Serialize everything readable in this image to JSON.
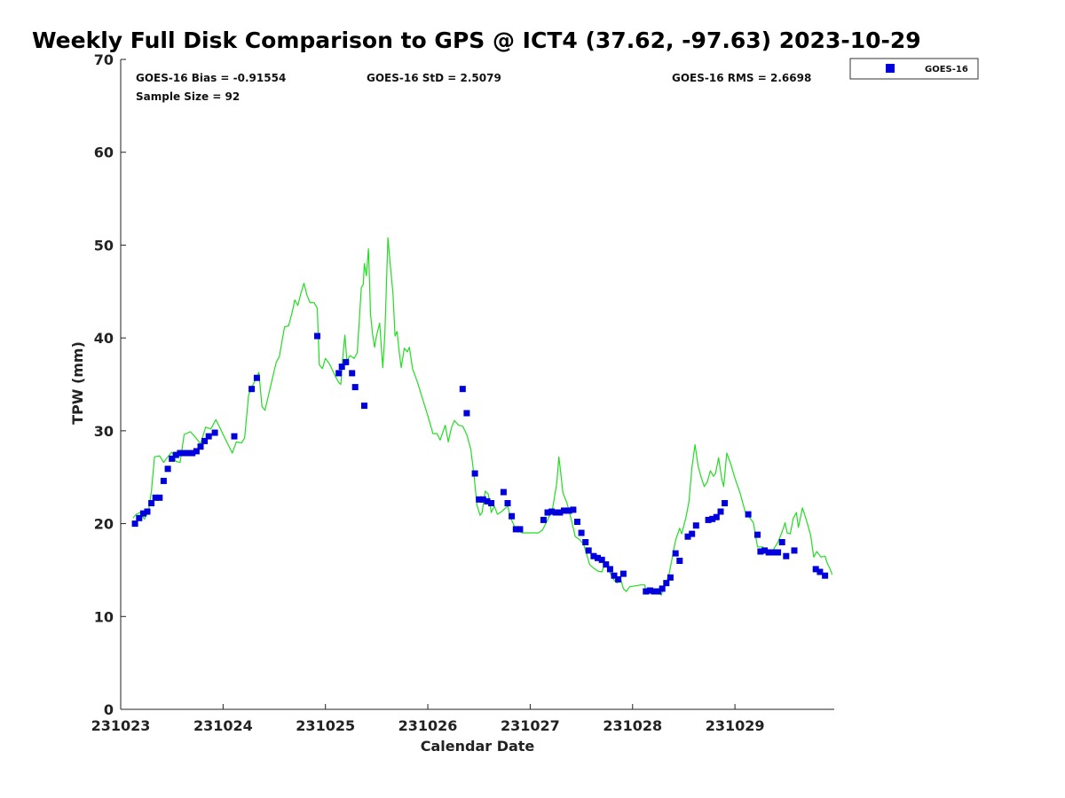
{
  "chart_data": {
    "type": "scatter",
    "title": "Weekly Full Disk Comparison to GPS @ ICT4 (37.62, -97.63) 2023-10-29",
    "xlabel": "Calendar Date",
    "ylabel": "TPW (mm)",
    "xlim": [
      0,
      6.97
    ],
    "ylim": [
      0,
      70
    ],
    "x_tick_values": [
      0,
      1,
      2,
      3,
      4,
      5,
      6
    ],
    "x_tick_labels": [
      "231023",
      "231024",
      "231025",
      "231026",
      "231027",
      "231028",
      "231029"
    ],
    "y_ticks": [
      0,
      10,
      20,
      30,
      40,
      50,
      60,
      70
    ],
    "x_axis_note": "x values are days elapsed from the 231023 tick",
    "grid": false,
    "legend_position": "top-right",
    "stats": {
      "bias": "GOES-16 Bias = -0.91554",
      "std": "GOES-16 StD = 2.5079",
      "rms": "GOES-16 RMS = 2.6698",
      "sample": "Sample Size = 92"
    },
    "series": [
      {
        "name": "GOES-16",
        "color": "#0000dd",
        "marker": "square",
        "points": [
          [
            0.14,
            20.0
          ],
          [
            0.18,
            20.6
          ],
          [
            0.22,
            21.1
          ],
          [
            0.26,
            21.3
          ],
          [
            0.3,
            22.2
          ],
          [
            0.34,
            22.8
          ],
          [
            0.38,
            22.8
          ],
          [
            0.42,
            24.6
          ],
          [
            0.46,
            25.9
          ],
          [
            0.5,
            27.0
          ],
          [
            0.54,
            27.4
          ],
          [
            0.58,
            27.6
          ],
          [
            0.62,
            27.6
          ],
          [
            0.66,
            27.6
          ],
          [
            0.7,
            27.6
          ],
          [
            0.74,
            27.8
          ],
          [
            0.78,
            28.3
          ],
          [
            0.82,
            28.9
          ],
          [
            0.86,
            29.4
          ],
          [
            0.92,
            29.8
          ],
          [
            1.11,
            29.4
          ],
          [
            1.28,
            34.5
          ],
          [
            1.33,
            35.7
          ],
          [
            1.92,
            40.2
          ],
          [
            2.13,
            36.2
          ],
          [
            2.16,
            36.9
          ],
          [
            2.2,
            37.4
          ],
          [
            2.26,
            36.2
          ],
          [
            2.29,
            34.7
          ],
          [
            2.38,
            32.7
          ],
          [
            3.34,
            34.5
          ],
          [
            3.38,
            31.9
          ],
          [
            3.46,
            25.4
          ],
          [
            3.5,
            22.6
          ],
          [
            3.54,
            22.6
          ],
          [
            3.58,
            22.4
          ],
          [
            3.62,
            22.2
          ],
          [
            3.74,
            23.4
          ],
          [
            3.78,
            22.2
          ],
          [
            3.82,
            20.8
          ],
          [
            3.86,
            19.4
          ],
          [
            3.9,
            19.4
          ],
          [
            4.13,
            20.4
          ],
          [
            4.17,
            21.2
          ],
          [
            4.21,
            21.3
          ],
          [
            4.25,
            21.2
          ],
          [
            4.29,
            21.2
          ],
          [
            4.33,
            21.4
          ],
          [
            4.38,
            21.4
          ],
          [
            4.42,
            21.5
          ],
          [
            4.46,
            20.2
          ],
          [
            4.5,
            19.0
          ],
          [
            4.54,
            18.0
          ],
          [
            4.57,
            17.1
          ],
          [
            4.62,
            16.5
          ],
          [
            4.66,
            16.3
          ],
          [
            4.7,
            16.1
          ],
          [
            4.74,
            15.6
          ],
          [
            4.78,
            15.1
          ],
          [
            4.82,
            14.4
          ],
          [
            4.86,
            14.0
          ],
          [
            4.91,
            14.6
          ],
          [
            5.13,
            12.7
          ],
          [
            5.17,
            12.8
          ],
          [
            5.21,
            12.7
          ],
          [
            5.25,
            12.7
          ],
          [
            5.29,
            13.0
          ],
          [
            5.33,
            13.6
          ],
          [
            5.37,
            14.2
          ],
          [
            5.42,
            16.8
          ],
          [
            5.46,
            16.0
          ],
          [
            5.54,
            18.6
          ],
          [
            5.58,
            18.9
          ],
          [
            5.62,
            19.8
          ],
          [
            5.74,
            20.4
          ],
          [
            5.78,
            20.5
          ],
          [
            5.82,
            20.7
          ],
          [
            5.86,
            21.3
          ],
          [
            5.9,
            22.2
          ],
          [
            6.13,
            21.0
          ],
          [
            6.22,
            18.8
          ],
          [
            6.25,
            17.0
          ],
          [
            6.29,
            17.1
          ],
          [
            6.33,
            16.9
          ],
          [
            6.37,
            16.9
          ],
          [
            6.42,
            16.9
          ],
          [
            6.46,
            18.0
          ],
          [
            6.5,
            16.5
          ],
          [
            6.58,
            17.1
          ],
          [
            6.79,
            15.1
          ],
          [
            6.83,
            14.8
          ],
          [
            6.88,
            14.4
          ]
        ]
      },
      {
        "color": "#22dd22",
        "marker": "line",
        "points": [
          [
            0.12,
            20.6
          ],
          [
            0.15,
            21.0
          ],
          [
            0.19,
            21.2
          ],
          [
            0.23,
            20.5
          ],
          [
            0.27,
            21.2
          ],
          [
            0.3,
            23.5
          ],
          [
            0.33,
            27.2
          ],
          [
            0.38,
            27.3
          ],
          [
            0.42,
            26.6
          ],
          [
            0.46,
            27.2
          ],
          [
            0.5,
            27.7
          ],
          [
            0.54,
            26.7
          ],
          [
            0.58,
            26.6
          ],
          [
            0.62,
            29.6
          ],
          [
            0.68,
            29.9
          ],
          [
            0.73,
            29.3
          ],
          [
            0.78,
            28.6
          ],
          [
            0.83,
            30.4
          ],
          [
            0.88,
            30.2
          ],
          [
            0.93,
            31.2
          ],
          [
            1.0,
            29.6
          ],
          [
            1.05,
            28.5
          ],
          [
            1.09,
            27.6
          ],
          [
            1.13,
            28.8
          ],
          [
            1.18,
            28.7
          ],
          [
            1.21,
            29.2
          ],
          [
            1.25,
            33.9
          ],
          [
            1.29,
            34.9
          ],
          [
            1.35,
            36.3
          ],
          [
            1.38,
            32.6
          ],
          [
            1.41,
            32.2
          ],
          [
            1.47,
            35.1
          ],
          [
            1.52,
            37.4
          ],
          [
            1.55,
            38.0
          ],
          [
            1.6,
            41.2
          ],
          [
            1.64,
            41.3
          ],
          [
            1.68,
            43.0
          ],
          [
            1.7,
            44.1
          ],
          [
            1.73,
            43.5
          ],
          [
            1.76,
            44.8
          ],
          [
            1.79,
            45.9
          ],
          [
            1.82,
            44.6
          ],
          [
            1.85,
            43.8
          ],
          [
            1.89,
            43.8
          ],
          [
            1.92,
            43.2
          ],
          [
            1.94,
            37.1
          ],
          [
            1.97,
            36.7
          ],
          [
            2.0,
            37.8
          ],
          [
            2.04,
            37.2
          ],
          [
            2.07,
            36.5
          ],
          [
            2.1,
            35.8
          ],
          [
            2.13,
            35.2
          ],
          [
            2.15,
            35.0
          ],
          [
            2.17,
            38.0
          ],
          [
            2.19,
            40.3
          ],
          [
            2.21,
            37.5
          ],
          [
            2.24,
            38.1
          ],
          [
            2.28,
            37.8
          ],
          [
            2.31,
            38.4
          ],
          [
            2.33,
            41.8
          ],
          [
            2.35,
            45.4
          ],
          [
            2.37,
            45.8
          ],
          [
            2.38,
            48.0
          ],
          [
            2.4,
            46.7
          ],
          [
            2.42,
            49.6
          ],
          [
            2.44,
            42.6
          ],
          [
            2.46,
            40.4
          ],
          [
            2.48,
            39.0
          ],
          [
            2.5,
            40.3
          ],
          [
            2.53,
            41.6
          ],
          [
            2.56,
            36.8
          ],
          [
            2.58,
            40.3
          ],
          [
            2.61,
            50.8
          ],
          [
            2.64,
            47.1
          ],
          [
            2.66,
            44.8
          ],
          [
            2.68,
            40.2
          ],
          [
            2.7,
            40.7
          ],
          [
            2.72,
            38.5
          ],
          [
            2.74,
            36.8
          ],
          [
            2.77,
            38.9
          ],
          [
            2.8,
            38.5
          ],
          [
            2.82,
            39.0
          ],
          [
            2.85,
            36.7
          ],
          [
            2.9,
            35.2
          ],
          [
            2.95,
            33.4
          ],
          [
            3.0,
            31.6
          ],
          [
            3.05,
            29.7
          ],
          [
            3.09,
            29.7
          ],
          [
            3.12,
            29.0
          ],
          [
            3.17,
            30.6
          ],
          [
            3.2,
            28.8
          ],
          [
            3.23,
            30.3
          ],
          [
            3.26,
            31.1
          ],
          [
            3.3,
            30.6
          ],
          [
            3.34,
            30.5
          ],
          [
            3.38,
            29.6
          ],
          [
            3.42,
            28.0
          ],
          [
            3.45,
            25.3
          ],
          [
            3.48,
            22.0
          ],
          [
            3.51,
            20.9
          ],
          [
            3.53,
            21.2
          ],
          [
            3.56,
            23.5
          ],
          [
            3.59,
            23.2
          ],
          [
            3.62,
            21.2
          ],
          [
            3.65,
            21.9
          ],
          [
            3.68,
            21.0
          ],
          [
            3.72,
            21.3
          ],
          [
            3.78,
            21.9
          ],
          [
            3.81,
            20.6
          ],
          [
            3.85,
            19.6
          ],
          [
            3.88,
            19.4
          ],
          [
            3.92,
            19.0
          ],
          [
            4.0,
            19.0
          ],
          [
            4.08,
            19.0
          ],
          [
            4.12,
            19.3
          ],
          [
            4.17,
            20.4
          ],
          [
            4.22,
            21.7
          ],
          [
            4.26,
            24.4
          ],
          [
            4.28,
            27.2
          ],
          [
            4.3,
            25.3
          ],
          [
            4.32,
            23.3
          ],
          [
            4.36,
            22.2
          ],
          [
            4.4,
            20.5
          ],
          [
            4.44,
            18.6
          ],
          [
            4.48,
            18.3
          ],
          [
            4.52,
            17.8
          ],
          [
            4.55,
            16.8
          ],
          [
            4.58,
            15.6
          ],
          [
            4.62,
            15.2
          ],
          [
            4.66,
            14.9
          ],
          [
            4.7,
            14.8
          ],
          [
            4.73,
            15.8
          ],
          [
            4.76,
            15.3
          ],
          [
            4.79,
            14.5
          ],
          [
            4.82,
            13.9
          ],
          [
            4.85,
            13.6
          ],
          [
            4.88,
            14.2
          ],
          [
            4.91,
            13.0
          ],
          [
            4.94,
            12.7
          ],
          [
            4.97,
            13.2
          ],
          [
            5.03,
            13.3
          ],
          [
            5.08,
            13.4
          ],
          [
            5.12,
            13.4
          ],
          [
            5.13,
            12.4
          ],
          [
            5.17,
            12.5
          ],
          [
            5.21,
            12.9
          ],
          [
            5.25,
            12.6
          ],
          [
            5.28,
            12.3
          ],
          [
            5.31,
            13.4
          ],
          [
            5.35,
            14.2
          ],
          [
            5.38,
            15.9
          ],
          [
            5.42,
            18.2
          ],
          [
            5.46,
            19.5
          ],
          [
            5.48,
            18.9
          ],
          [
            5.52,
            20.6
          ],
          [
            5.55,
            22.3
          ],
          [
            5.58,
            26.1
          ],
          [
            5.61,
            28.5
          ],
          [
            5.64,
            26.2
          ],
          [
            5.67,
            25.0
          ],
          [
            5.7,
            24.0
          ],
          [
            5.73,
            24.5
          ],
          [
            5.76,
            25.7
          ],
          [
            5.79,
            25.1
          ],
          [
            5.81,
            25.4
          ],
          [
            5.84,
            27.1
          ],
          [
            5.87,
            24.9
          ],
          [
            5.89,
            24.0
          ],
          [
            5.92,
            27.6
          ],
          [
            5.96,
            26.4
          ],
          [
            6.0,
            24.9
          ],
          [
            6.05,
            23.3
          ],
          [
            6.1,
            21.3
          ],
          [
            6.14,
            20.7
          ],
          [
            6.18,
            20.1
          ],
          [
            6.22,
            17.5
          ],
          [
            6.27,
            17.5
          ],
          [
            6.32,
            16.8
          ],
          [
            6.37,
            17.1
          ],
          [
            6.42,
            18.0
          ],
          [
            6.46,
            19.1
          ],
          [
            6.49,
            20.1
          ],
          [
            6.51,
            19.0
          ],
          [
            6.54,
            18.9
          ],
          [
            6.57,
            20.6
          ],
          [
            6.6,
            21.2
          ],
          [
            6.62,
            19.6
          ],
          [
            6.66,
            21.7
          ],
          [
            6.7,
            20.3
          ],
          [
            6.74,
            18.7
          ],
          [
            6.77,
            16.4
          ],
          [
            6.8,
            17.0
          ],
          [
            6.84,
            16.4
          ],
          [
            6.88,
            16.5
          ],
          [
            6.9,
            15.8
          ],
          [
            6.93,
            15.1
          ],
          [
            6.95,
            14.5
          ]
        ]
      }
    ]
  }
}
